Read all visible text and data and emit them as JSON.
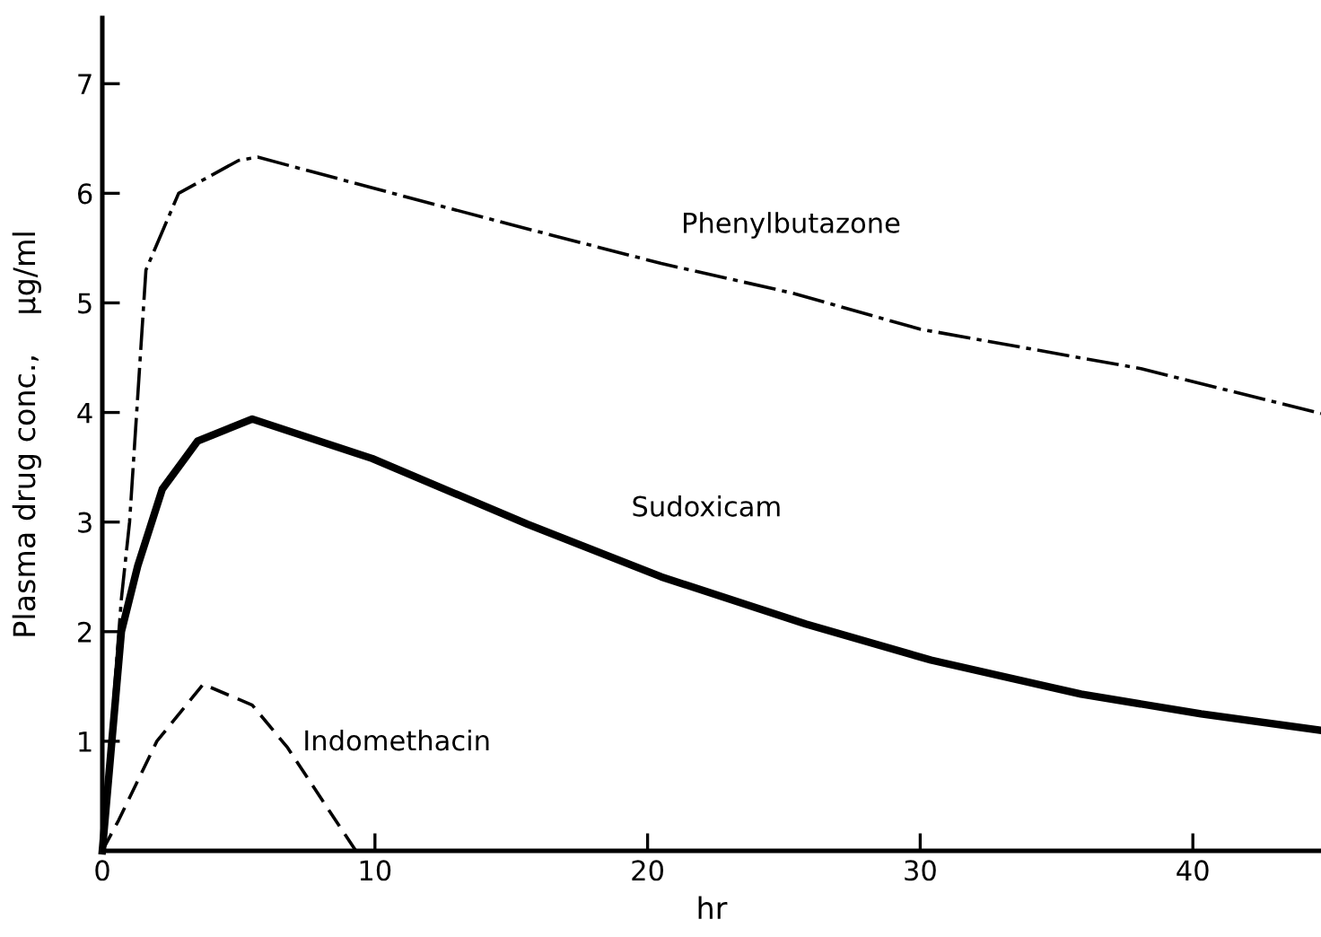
{
  "chart_data": {
    "type": "line",
    "xlabel": "hr",
    "ylabel": "Plasma drug conc.,    μg/ml",
    "xlim": [
      0,
      44.7
    ],
    "ylim": [
      0,
      7.6
    ],
    "xticks": [
      0,
      10,
      20,
      30,
      40
    ],
    "yticks": [
      1,
      2,
      3,
      4,
      5,
      6,
      7
    ],
    "grid": false,
    "legend": false,
    "series": [
      {
        "name": "Phenylbutazone",
        "color": "#000000",
        "line_style": "dashdot",
        "x": [
          0,
          0.7,
          1.0,
          1.6,
          2.8,
          5.0,
          5.7,
          9.9,
          14.9,
          20.5,
          25.3,
          30,
          38.1,
          44.7
        ],
        "values": [
          0,
          2.3,
          3.0,
          5.3,
          6.0,
          6.3,
          6.33,
          6.05,
          5.72,
          5.36,
          5.09,
          4.76,
          4.4,
          3.99
        ]
      },
      {
        "name": "Sudoxicam",
        "color": "#000000",
        "line_style": "solid",
        "x": [
          0,
          0.7,
          1.3,
          2.2,
          3.5,
          5.5,
          9.9,
          15.6,
          20.5,
          25.8,
          30.4,
          35.9,
          40.3,
          44.7
        ],
        "values": [
          0,
          2.0,
          2.6,
          3.3,
          3.74,
          3.94,
          3.58,
          2.98,
          2.5,
          2.07,
          1.74,
          1.43,
          1.25,
          1.1
        ]
      },
      {
        "name": "Indomethacin",
        "color": "#000000",
        "line_style": "dashed",
        "x": [
          0,
          0.6,
          2.0,
          3.7,
          5.5,
          6.8,
          8.1,
          9.3
        ],
        "values": [
          0,
          0.28,
          1.0,
          1.52,
          1.33,
          0.94,
          0.45,
          0
        ]
      }
    ]
  }
}
